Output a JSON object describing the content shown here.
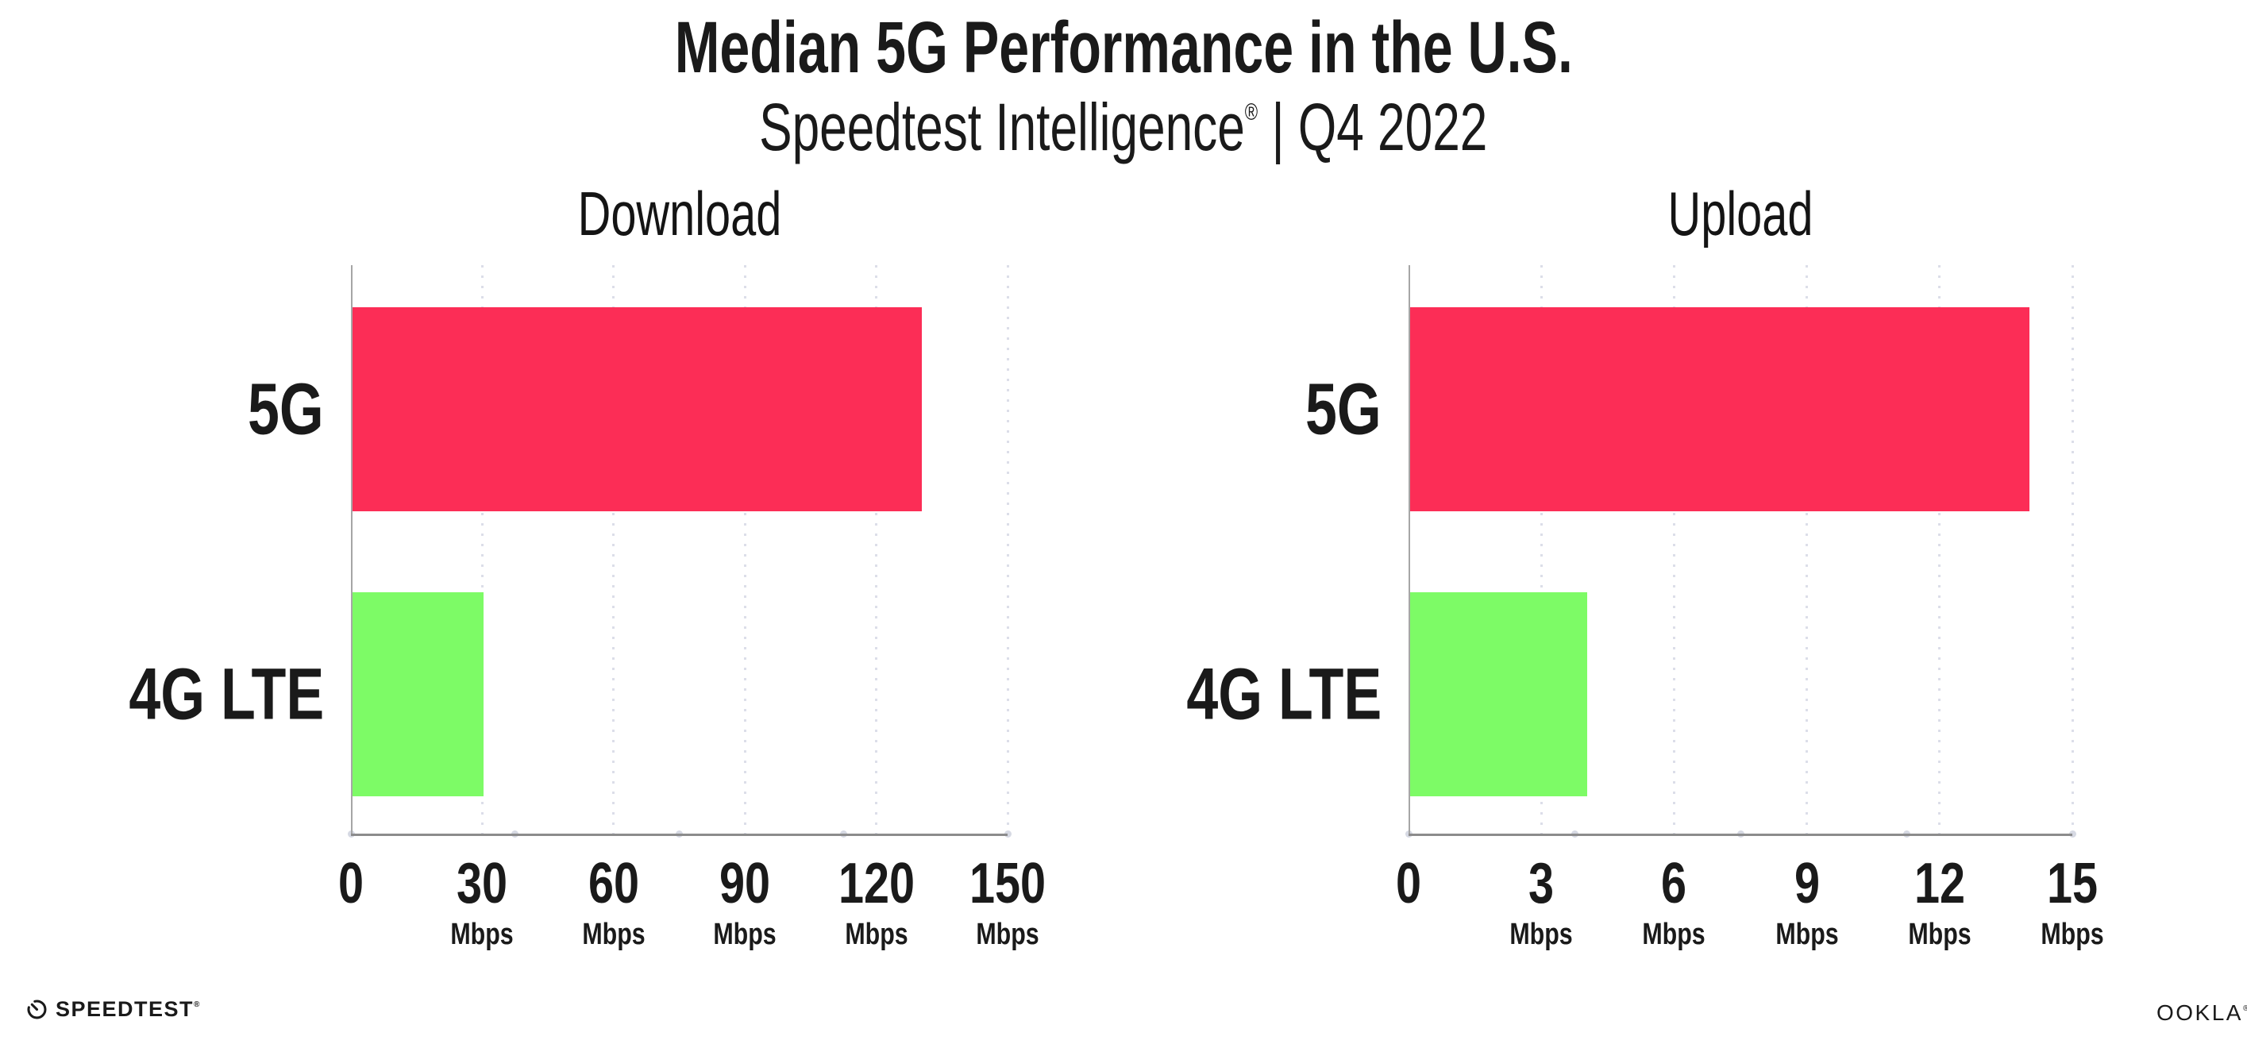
{
  "header": {
    "title": "Median 5G Performance in the U.S.",
    "subtitle_brand": "Speedtest Intelligence",
    "subtitle_reg": "®",
    "subtitle_rest": " | Q4 2022"
  },
  "chart_data": [
    {
      "type": "bar",
      "orientation": "horizontal",
      "title": "Download",
      "categories": [
        "5G",
        "4G LTE"
      ],
      "values": [
        130,
        30
      ],
      "unit": "Mbps",
      "xlim": [
        0,
        150
      ],
      "xticks": [
        0,
        30,
        60,
        90,
        120,
        150
      ],
      "bar_colors": [
        "#FC2D56",
        "#7DFB66"
      ],
      "grid": "dotted-vertical",
      "legend": "none"
    },
    {
      "type": "bar",
      "orientation": "horizontal",
      "title": "Upload",
      "categories": [
        "5G",
        "4G LTE"
      ],
      "values": [
        14,
        4
      ],
      "unit": "Mbps",
      "xlim": [
        0,
        15
      ],
      "xticks": [
        0,
        3,
        6,
        9,
        12,
        15
      ],
      "bar_colors": [
        "#FC2D56",
        "#7DFB66"
      ],
      "grid": "dotted-vertical",
      "legend": "none"
    }
  ],
  "footer": {
    "speedtest_label": "SPEEDTEST",
    "speedtest_reg": "®",
    "ookla_label": "OOKLA",
    "ookla_reg": "®"
  },
  "colors": {
    "bar_5g": "#FC2D56",
    "bar_4g_lte": "#7DFB66",
    "y_axis": "#A6A6A6",
    "x_axis": "#8C8C8C",
    "gridline_dot": "#DCDEE9",
    "baseline_dot": "#D6D9E3",
    "text": "#1A1A1A",
    "background": "#FFFFFF"
  }
}
